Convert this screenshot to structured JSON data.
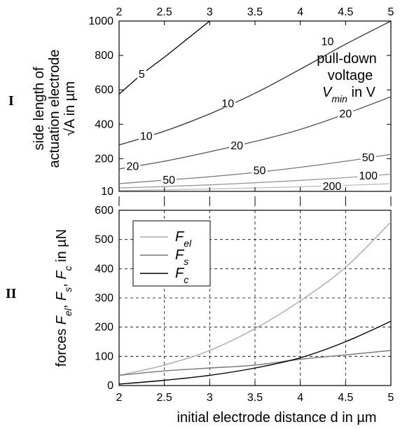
{
  "panel_labels": {
    "top": "I",
    "bottom": "II"
  },
  "top_ylabel": {
    "line1": "side length of",
    "line2": "actuation electrode",
    "line3": "√A in µm"
  },
  "annotation": {
    "line1": "pull-down",
    "line2": "voltage",
    "line3": "V_min in V"
  },
  "bottom_ylabel": "forces F_el, F_s, F_c in µN",
  "xlabel": "initial electrode distance d in µm",
  "x_tick_labels": [
    "2",
    "2.5",
    "3",
    "3.5",
    "4",
    "4.5",
    "5"
  ],
  "top_y_tick_labels": [
    "10",
    "200",
    "400",
    "600",
    "800",
    "1000"
  ],
  "bottom_y_tick_labels": [
    "0",
    "100",
    "200",
    "300",
    "400",
    "500",
    "600"
  ],
  "legend": [
    "F_el",
    "F_s",
    "F_c"
  ],
  "chart_data": [
    {
      "type": "line",
      "title": "",
      "xlabel": "",
      "ylabel": "side length of actuation electrode √A in µm",
      "xlim": [
        2,
        5
      ],
      "ylim": [
        10,
        1000
      ],
      "grid": false,
      "series": [
        {
          "name": "5",
          "color": "#000000",
          "x": [
            2,
            2.25,
            2.5,
            2.75,
            3.0
          ],
          "y": [
            575,
            690,
            790,
            895,
            1000
          ]
        },
        {
          "name": "10",
          "color": "#333333",
          "x": [
            2,
            2.5,
            3,
            3.5,
            4,
            4.5,
            5
          ],
          "y": [
            280,
            360,
            460,
            580,
            720,
            865,
            1000
          ]
        },
        {
          "name": "20",
          "color": "#555555",
          "x": [
            2,
            2.5,
            3,
            3.5,
            4,
            4.5,
            5
          ],
          "y": [
            140,
            185,
            240,
            300,
            370,
            460,
            560
          ]
        },
        {
          "name": "50",
          "color": "#777777",
          "x": [
            2,
            2.5,
            3,
            3.5,
            4,
            4.5,
            5
          ],
          "y": [
            55,
            75,
            95,
            120,
            150,
            185,
            225
          ]
        },
        {
          "name": "100",
          "color": "#999999",
          "x": [
            2,
            2.5,
            3,
            3.5,
            4,
            4.5,
            5
          ],
          "y": [
            30,
            38,
            48,
            60,
            74,
            90,
            110
          ]
        },
        {
          "name": "200",
          "color": "#bbbbbb",
          "x": [
            2,
            2.5,
            3,
            3.5,
            4,
            4.5,
            5
          ],
          "y": [
            15,
            19,
            24,
            30,
            37,
            45,
            55
          ]
        }
      ],
      "contour_labels": [
        {
          "text": "5",
          "x": 2.25,
          "y": 690
        },
        {
          "text": "10",
          "x": 4.3,
          "y": 880
        },
        {
          "text": "10",
          "x": 3.2,
          "y": 520
        },
        {
          "text": "10",
          "x": 2.3,
          "y": 330
        },
        {
          "text": "20",
          "x": 4.5,
          "y": 460
        },
        {
          "text": "20",
          "x": 3.3,
          "y": 275
        },
        {
          "text": "20",
          "x": 2.15,
          "y": 155
        },
        {
          "text": "50",
          "x": 4.75,
          "y": 205
        },
        {
          "text": "50",
          "x": 3.55,
          "y": 130
        },
        {
          "text": "50",
          "x": 2.55,
          "y": 75
        },
        {
          "text": "100",
          "x": 4.75,
          "y": 100
        },
        {
          "text": "200",
          "x": 4.35,
          "y": 38
        }
      ]
    },
    {
      "type": "line",
      "title": "",
      "xlabel": "initial electrode distance d in µm",
      "ylabel": "forces F_el, F_s, F_c in µN",
      "xlim": [
        2,
        5
      ],
      "ylim": [
        0,
        600
      ],
      "grid": true,
      "legend_position": "top-left",
      "series": [
        {
          "name": "F_el",
          "color": "#aaaaaa",
          "x": [
            2,
            2.5,
            3,
            3.5,
            4,
            4.5,
            5
          ],
          "y": [
            35,
            70,
            120,
            195,
            290,
            405,
            560
          ]
        },
        {
          "name": "F_s",
          "color": "#777777",
          "x": [
            2,
            2.5,
            3,
            3.5,
            4,
            4.5,
            5
          ],
          "y": [
            35,
            50,
            60,
            70,
            90,
            105,
            120
          ]
        },
        {
          "name": "F_c",
          "color": "#000000",
          "x": [
            2,
            2.5,
            3,
            3.5,
            4,
            4.5,
            5
          ],
          "y": [
            5,
            18,
            35,
            60,
            95,
            150,
            220
          ]
        }
      ]
    }
  ]
}
